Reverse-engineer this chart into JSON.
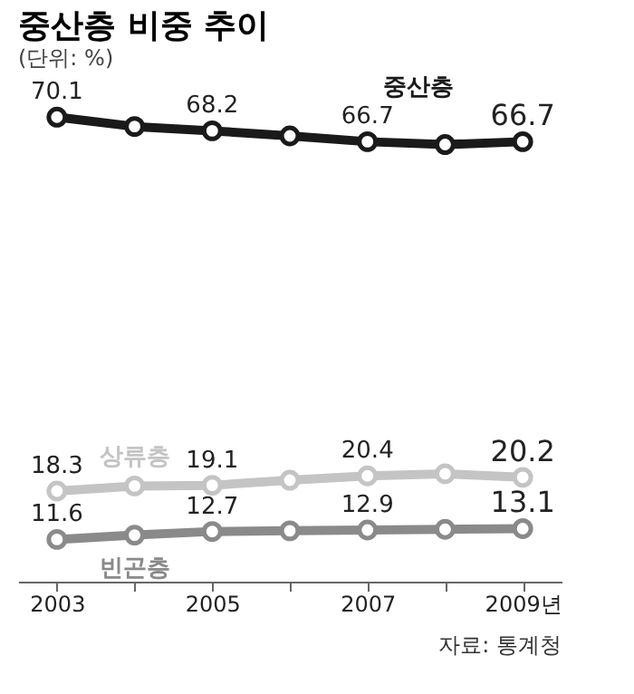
{
  "chart_data": {
    "type": "line",
    "title": "중산층 비중 추이",
    "subtitle": "(단위: %)",
    "categories": [
      "2003",
      null,
      "2005",
      null,
      "2007",
      null,
      "2009년"
    ],
    "series": [
      {
        "name": "중산층",
        "color": "#1a1a1a",
        "values": [
          70.1,
          68.8,
          68.2,
          67.5,
          66.7,
          66.3,
          66.7
        ],
        "value_labels": [
          "70.1",
          null,
          "68.2",
          null,
          "66.7",
          null,
          "66.7"
        ]
      },
      {
        "name": "상류층",
        "color": "#c4c4c4",
        "values": [
          18.3,
          19.0,
          19.1,
          19.8,
          20.4,
          20.7,
          20.2
        ],
        "value_labels": [
          "18.3",
          null,
          "19.1",
          null,
          "20.4",
          null,
          "20.2"
        ]
      },
      {
        "name": "빈곤층",
        "color": "#8a8a8a",
        "values": [
          11.6,
          12.2,
          12.7,
          12.8,
          12.9,
          13.0,
          13.1
        ],
        "value_labels": [
          "11.6",
          null,
          "12.7",
          null,
          "12.9",
          null,
          "13.1"
        ]
      }
    ],
    "marker": "circle",
    "line_style": "solid",
    "grid": false,
    "annotations": [
      "자료: 통계청"
    ]
  }
}
